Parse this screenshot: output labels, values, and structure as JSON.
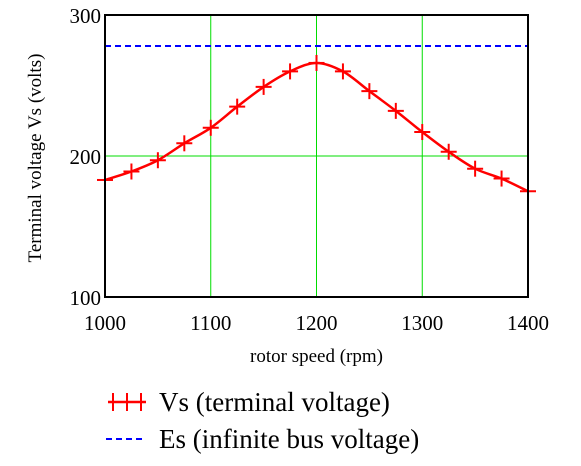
{
  "chart_data": {
    "type": "line",
    "title": "",
    "xlabel": "rotor speed (rpm)",
    "ylabel": "Terminal voltage Vs (volts)",
    "xlim": [
      1000,
      1400
    ],
    "ylim": [
      100,
      300
    ],
    "xticks": [
      1000,
      1100,
      1200,
      1300,
      1400
    ],
    "yticks": [
      100,
      200,
      300
    ],
    "xtick_labels": [
      "1000",
      "1100",
      "1200",
      "1300",
      "1400"
    ],
    "ytick_labels": [
      "100",
      "200",
      "300"
    ],
    "grid": true,
    "legend_position": "bottom",
    "series": [
      {
        "name": "Vs (terminal voltage)",
        "color": "#ff0000",
        "style": "solid line with + markers",
        "x": [
          1000,
          1025,
          1050,
          1075,
          1100,
          1125,
          1150,
          1175,
          1200,
          1225,
          1250,
          1275,
          1300,
          1325,
          1350,
          1375,
          1400
        ],
        "y": [
          183,
          189,
          197,
          209,
          220,
          235,
          249,
          260,
          266,
          260,
          246,
          232,
          217,
          203,
          191,
          184,
          175
        ]
      },
      {
        "name": "Es (infinite bus voltage)",
        "color": "#0000ff",
        "style": "dashed line",
        "x": [
          1000,
          1400
        ],
        "y": [
          278,
          278
        ]
      }
    ]
  }
}
